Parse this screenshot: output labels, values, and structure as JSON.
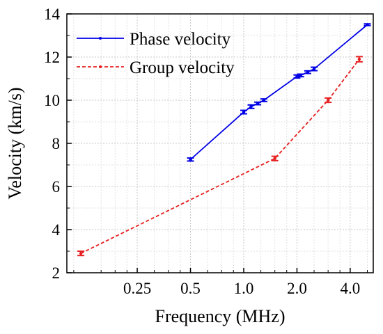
{
  "chart_data": {
    "type": "line",
    "x_scale": "log2",
    "xlabel": "Frequency (MHz)",
    "ylabel": "Velocity (km/s)",
    "xlim": [
      0.1,
      5.4
    ],
    "ylim": [
      2,
      14
    ],
    "x_ticks": [
      0.25,
      0.5,
      1.0,
      2.0,
      4.0
    ],
    "x_tick_labels": [
      "0.25",
      "0.5",
      "1.0",
      "2.0",
      "4.0"
    ],
    "y_ticks": [
      2,
      4,
      6,
      8,
      10,
      12,
      14
    ],
    "y_tick_labels": [
      "2",
      "4",
      "6",
      "8",
      "10",
      "12",
      "14"
    ],
    "grid": true,
    "legend_position": "top-left",
    "series": [
      {
        "name": "Phase velocity",
        "color": "#0000e6",
        "line_style": "solid",
        "marker": "dot",
        "points": [
          {
            "x": 0.5,
            "y": 7.25,
            "err": 0.07
          },
          {
            "x": 1.0,
            "y": 9.45,
            "err": 0.08
          },
          {
            "x": 1.1,
            "y": 9.7,
            "err": 0.08
          },
          {
            "x": 1.2,
            "y": 9.85,
            "err": 0.06
          },
          {
            "x": 1.3,
            "y": 10.0,
            "err": 0.06
          },
          {
            "x": 2.0,
            "y": 11.1,
            "err": 0.07
          },
          {
            "x": 2.1,
            "y": 11.15,
            "err": 0.06
          },
          {
            "x": 2.3,
            "y": 11.3,
            "err": 0.06
          },
          {
            "x": 2.5,
            "y": 11.45,
            "err": 0.08
          },
          {
            "x": 5.0,
            "y": 13.5,
            "err": 0.04
          }
        ]
      },
      {
        "name": "Group velocity",
        "color": "#e62020",
        "line_style": "dashed",
        "marker": "dot",
        "points": [
          {
            "x": 0.12,
            "y": 2.9,
            "err": 0.1
          },
          {
            "x": 1.5,
            "y": 7.3,
            "err": 0.1
          },
          {
            "x": 3.0,
            "y": 10.0,
            "err": 0.1
          },
          {
            "x": 4.5,
            "y": 11.9,
            "err": 0.12
          }
        ]
      }
    ]
  }
}
